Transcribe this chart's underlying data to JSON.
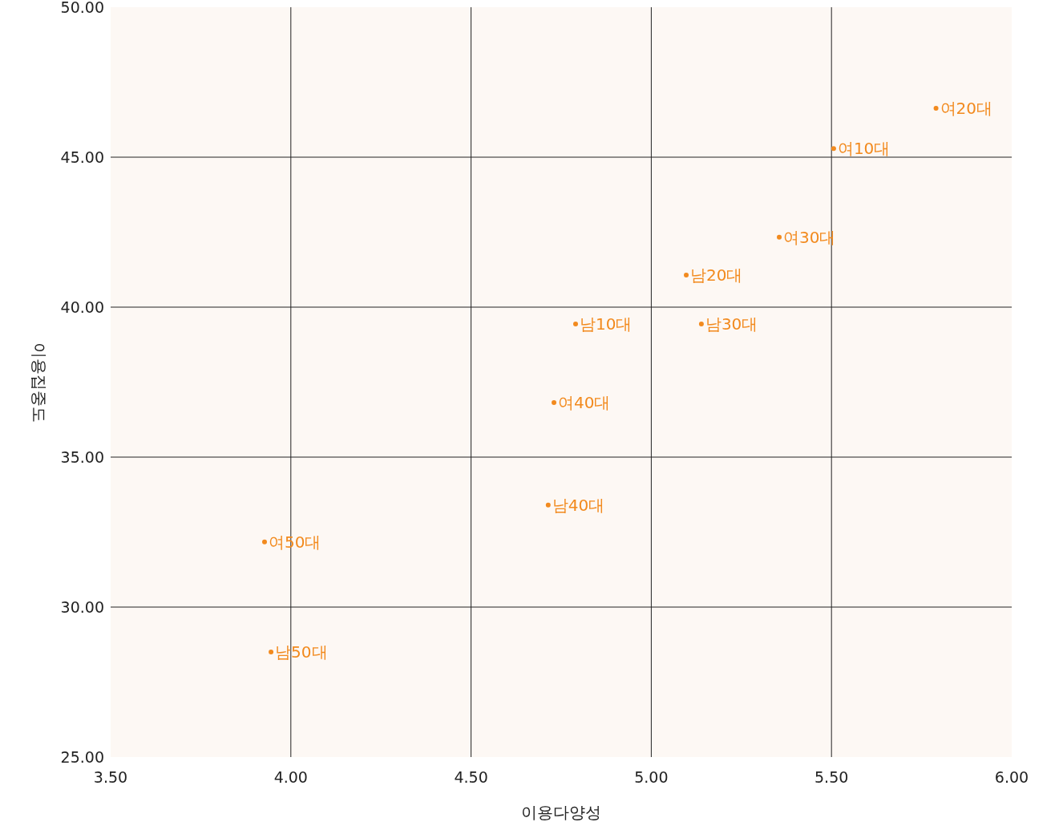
{
  "chart_data": {
    "type": "scatter",
    "xlabel": "이용다양성",
    "ylabel": "이용집중도",
    "x": [
      5.79,
      5.506,
      5.355,
      5.097,
      4.79,
      5.139,
      4.73,
      4.714,
      3.927,
      3.945
    ],
    "values": [
      46.63,
      45.29,
      42.33,
      41.07,
      39.44,
      39.44,
      36.82,
      33.4,
      32.17,
      28.5
    ],
    "color": "#f28a1e",
    "marker": "circle",
    "grid": true,
    "xlim": [
      3.5,
      6.0
    ],
    "ylim": [
      25,
      50
    ],
    "xticks": [
      {
        "value": 3.5,
        "label": "3.50"
      },
      {
        "value": 4.0,
        "label": "4.00"
      },
      {
        "value": 4.5,
        "label": "4.50"
      },
      {
        "value": 5.0,
        "label": "5.00"
      },
      {
        "value": 5.5,
        "label": "5.50"
      },
      {
        "value": 6.0,
        "label": "6.00"
      }
    ],
    "yticks": [
      {
        "value": 25,
        "label": "25.00"
      },
      {
        "value": 30,
        "label": "30.00"
      },
      {
        "value": 35,
        "label": "35.00"
      },
      {
        "value": 40,
        "label": "40.00"
      },
      {
        "value": 45,
        "label": "45.00"
      },
      {
        "value": 50,
        "label": "50.00"
      }
    ],
    "annotations": [
      {
        "text": "여20대",
        "x": 5.79,
        "y": 46.63
      },
      {
        "text": "여10대",
        "x": 5.506,
        "y": 45.29
      },
      {
        "text": "여30대",
        "x": 5.355,
        "y": 42.33
      },
      {
        "text": "남20대",
        "x": 5.097,
        "y": 41.07
      },
      {
        "text": "남10대",
        "x": 4.79,
        "y": 39.44
      },
      {
        "text": "남30대",
        "x": 5.139,
        "y": 39.44
      },
      {
        "text": "여40대",
        "x": 4.73,
        "y": 36.82
      },
      {
        "text": "남40대",
        "x": 4.714,
        "y": 33.4
      },
      {
        "text": "여50대",
        "x": 3.927,
        "y": 32.17
      },
      {
        "text": "남50대",
        "x": 3.945,
        "y": 28.5
      }
    ]
  }
}
